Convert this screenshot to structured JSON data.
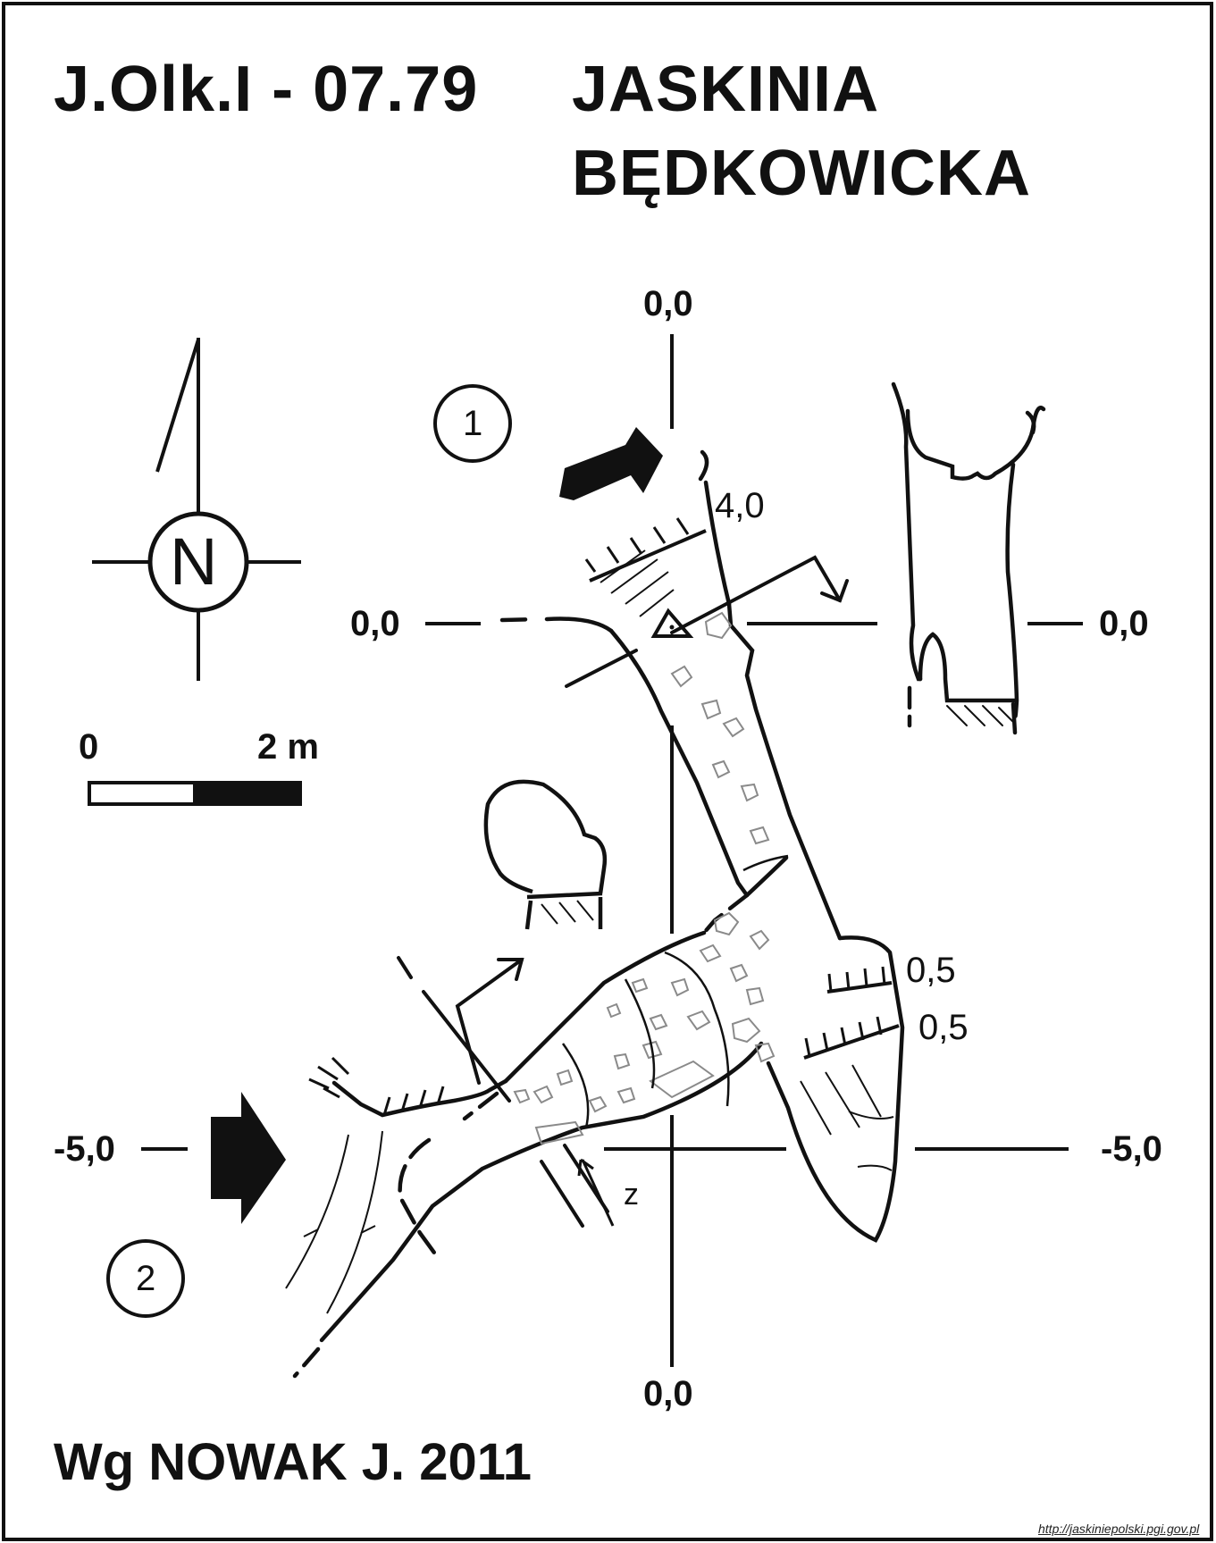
{
  "title": {
    "code": "J.Olk.I - 07.79",
    "name_line1": "JASKINIA",
    "name_line2": "BĘDKOWICKA"
  },
  "north_arrow": {
    "letter": "N",
    "icon": "north-arrow-icon"
  },
  "scale_bar": {
    "start_label": "0",
    "end_label": "2 m"
  },
  "section_markers": {
    "marker_1": "1",
    "marker_2": "2"
  },
  "grid_labels": {
    "plan_top": "0,0",
    "plan_bottom": "0,0",
    "row0_left": "0,0",
    "row0_right": "0,0",
    "row5_left": "-5,0",
    "row5_right": "-5,0"
  },
  "depth_labels": {
    "entrance_height": "4,0",
    "chamber_step_1": "0,5",
    "chamber_step_2": "0,5",
    "passage_mark": "z"
  },
  "credit": "Wg NOWAK J. 2011",
  "source_url": "http://jaskiniepolski.pgi.gov.pl",
  "colors": {
    "ink": "#111111",
    "background": "#ffffff",
    "rubble": "#8a8a8a"
  }
}
